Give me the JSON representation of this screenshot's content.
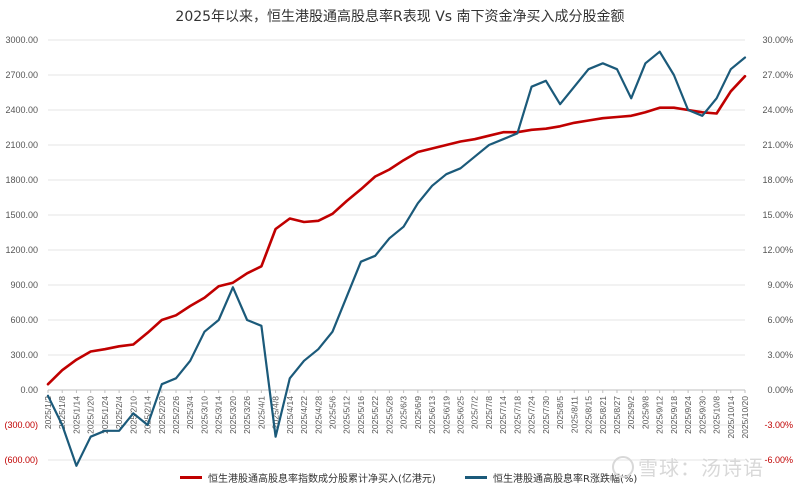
{
  "chart_data": {
    "type": "line",
    "title": "2025年以来，恒生港股通高股息率R表现 Vs 南下资金净买入成分股金额",
    "x": [
      "2025/1/2",
      "2025/1/8",
      "2025/1/14",
      "2025/1/20",
      "2025/1/24",
      "2025/2/4",
      "2025/2/10",
      "2025/2/14",
      "2025/2/20",
      "2025/2/26",
      "2025/3/4",
      "2025/3/10",
      "2025/3/14",
      "2025/3/20",
      "2025/3/26",
      "2025/4/1",
      "2025/4/8",
      "2025/4/14",
      "2025/4/22",
      "2025/4/28",
      "2025/5/6",
      "2025/5/12",
      "2025/5/16",
      "2025/5/22",
      "2025/5/28",
      "2025/6/3",
      "2025/6/9",
      "2025/6/13",
      "2025/6/19",
      "2025/6/25",
      "2025/7/2",
      "2025/7/8",
      "2025/7/14",
      "2025/7/18",
      "2025/7/24",
      "2025/7/30",
      "2025/8/5",
      "2025/8/11",
      "2025/8/15",
      "2025/8/21",
      "2025/8/27",
      "2025/9/2",
      "2025/9/8",
      "2025/9/12",
      "2025/9/18",
      "2025/9/24",
      "2025/9/30",
      "2025/10/8",
      "2025/10/14",
      "2025/10/20"
    ],
    "y_left": {
      "ticks": [
        "(600.00)",
        "(300.00)",
        "0.00",
        "300.00",
        "600.00",
        "900.00",
        "1200.00",
        "1500.00",
        "1800.00",
        "2100.00",
        "2400.00",
        "2700.00",
        "3000.00"
      ],
      "range": [
        -600,
        3000
      ]
    },
    "y_right": {
      "ticks": [
        "-6.00%",
        "-3.00%",
        "0.00%",
        "3.00%",
        "6.00%",
        "9.00%",
        "12.00%",
        "15.00%",
        "18.00%",
        "21.00%",
        "24.00%",
        "27.00%",
        "30.00%"
      ],
      "range": [
        -6,
        30
      ]
    },
    "series": [
      {
        "name": "恒生港股通高股息率指数成分股累计净买入(亿港元)",
        "axis": "left",
        "color": "#c00000",
        "values": [
          50,
          170,
          260,
          330,
          350,
          375,
          390,
          490,
          600,
          640,
          720,
          790,
          890,
          920,
          1000,
          1060,
          1380,
          1470,
          1440,
          1450,
          1510,
          1620,
          1720,
          1830,
          1890,
          1970,
          2040,
          2070,
          2100,
          2130,
          2150,
          2180,
          2210,
          2210,
          2230,
          2240,
          2260,
          2290,
          2310,
          2330,
          2340,
          2350,
          2380,
          2420,
          2420,
          2400,
          2380,
          2370,
          2560,
          2690
        ]
      },
      {
        "name": "恒生港股通高股息率R涨跌幅(%)",
        "axis": "right",
        "color": "#1b5a7a",
        "values": [
          -0.5,
          -3.0,
          -6.5,
          -4.0,
          -3.5,
          -3.5,
          -2.0,
          -3.0,
          0.5,
          1.0,
          2.5,
          5.0,
          6.0,
          8.8,
          6.0,
          5.5,
          -4.0,
          1.0,
          2.5,
          3.5,
          5.0,
          8.0,
          11.0,
          11.5,
          13.0,
          14.0,
          16.0,
          17.5,
          18.5,
          19.0,
          20.0,
          21.0,
          21.5,
          22.0,
          26.0,
          26.5,
          24.5,
          26.0,
          27.5,
          28.0,
          27.5,
          25.0,
          28.0,
          29.0,
          27.0,
          24.0,
          23.5,
          25.0,
          27.5,
          28.5
        ]
      }
    ],
    "legend_position": "bottom"
  },
  "watermark": {
    "text": "雪球：汤诗语"
  }
}
